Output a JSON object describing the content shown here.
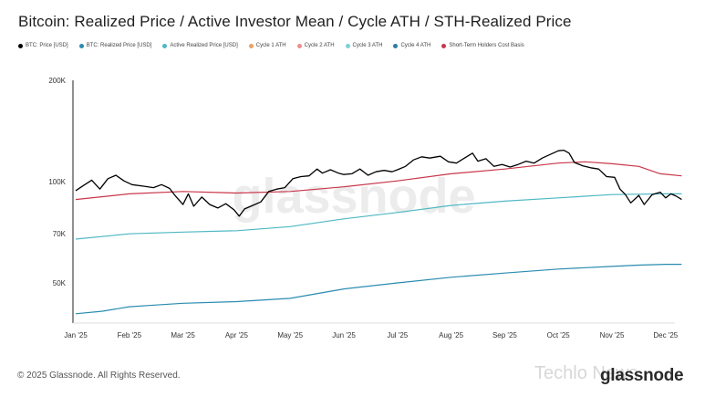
{
  "chart_data": {
    "type": "line",
    "title": "Bitcoin: Realized Price / Active Investor Mean / Cycle ATH / STH-Realized Price",
    "legend": [
      {
        "name": "BTC: Price [USD]",
        "color": "#000000"
      },
      {
        "name": "BTC: Realized Price [USD]",
        "color": "#2a8bb0"
      },
      {
        "name": "Active Realized Price [USD]",
        "color": "#4fb8c4"
      },
      {
        "name": "Cycle 1 ATH",
        "color": "#f0a060"
      },
      {
        "name": "Cycle 2 ATH",
        "color": "#ef8c8c"
      },
      {
        "name": "Cycle 3 ATH",
        "color": "#7fd0d8"
      },
      {
        "name": "Cycle 4 ATH",
        "color": "#2a7fa0"
      },
      {
        "name": "Short-Term Holders Cost Basis",
        "color": "#c9364a"
      }
    ],
    "y_scale": "log",
    "ylim": [
      38000,
      200000
    ],
    "y_ticks": [
      {
        "value": 200000,
        "label": "200K"
      },
      {
        "value": 100000,
        "label": "100K"
      },
      {
        "value": 70000,
        "label": "70K"
      },
      {
        "value": 50000,
        "label": "50K"
      }
    ],
    "x_ticks": [
      "Jan '25",
      "Feb '25",
      "Mar '25",
      "Apr '25",
      "May '25",
      "Jun '25",
      "Jul '25",
      "Aug '25",
      "Sep '25",
      "Oct '25",
      "Nov '25",
      "Dec '25"
    ],
    "x_range_months": [
      0,
      11.3
    ],
    "series": [
      {
        "name": "BTC: Price [USD]",
        "color": "#000000",
        "points": [
          [
            0.0,
            94000
          ],
          [
            0.15,
            97500
          ],
          [
            0.3,
            101000
          ],
          [
            0.45,
            95000
          ],
          [
            0.6,
            102000
          ],
          [
            0.75,
            104500
          ],
          [
            0.9,
            100500
          ],
          [
            1.05,
            98000
          ],
          [
            1.25,
            97000
          ],
          [
            1.45,
            96000
          ],
          [
            1.6,
            98000
          ],
          [
            1.75,
            95500
          ],
          [
            1.85,
            91000
          ],
          [
            2.0,
            85500
          ],
          [
            2.1,
            92000
          ],
          [
            2.2,
            84500
          ],
          [
            2.35,
            90000
          ],
          [
            2.5,
            85500
          ],
          [
            2.65,
            83500
          ],
          [
            2.8,
            86000
          ],
          [
            2.95,
            82500
          ],
          [
            3.05,
            79000
          ],
          [
            3.15,
            83000
          ],
          [
            3.3,
            85000
          ],
          [
            3.45,
            87000
          ],
          [
            3.6,
            93500
          ],
          [
            3.75,
            95000
          ],
          [
            3.9,
            96000
          ],
          [
            4.05,
            102000
          ],
          [
            4.2,
            103500
          ],
          [
            4.35,
            104000
          ],
          [
            4.5,
            109000
          ],
          [
            4.6,
            106000
          ],
          [
            4.75,
            108500
          ],
          [
            4.9,
            106000
          ],
          [
            5.0,
            105000
          ],
          [
            5.15,
            105500
          ],
          [
            5.3,
            109000
          ],
          [
            5.45,
            104500
          ],
          [
            5.6,
            107000
          ],
          [
            5.75,
            108000
          ],
          [
            5.9,
            107000
          ],
          [
            6.0,
            108500
          ],
          [
            6.15,
            111000
          ],
          [
            6.3,
            116000
          ],
          [
            6.45,
            118500
          ],
          [
            6.6,
            117500
          ],
          [
            6.8,
            119000
          ],
          [
            6.95,
            114500
          ],
          [
            7.1,
            113500
          ],
          [
            7.25,
            117500
          ],
          [
            7.4,
            121500
          ],
          [
            7.5,
            115000
          ],
          [
            7.65,
            117000
          ],
          [
            7.8,
            111000
          ],
          [
            7.95,
            112500
          ],
          [
            8.1,
            110500
          ],
          [
            8.25,
            112500
          ],
          [
            8.4,
            115000
          ],
          [
            8.55,
            113500
          ],
          [
            8.7,
            117500
          ],
          [
            8.85,
            120500
          ],
          [
            9.0,
            123500
          ],
          [
            9.1,
            124000
          ],
          [
            9.2,
            121500
          ],
          [
            9.3,
            114000
          ],
          [
            9.45,
            111500
          ],
          [
            9.6,
            110000
          ],
          [
            9.75,
            109000
          ],
          [
            9.9,
            103500
          ],
          [
            10.05,
            103000
          ],
          [
            10.15,
            95000
          ],
          [
            10.25,
            91500
          ],
          [
            10.35,
            86500
          ],
          [
            10.5,
            91000
          ],
          [
            10.6,
            85500
          ],
          [
            10.75,
            91500
          ],
          [
            10.9,
            93000
          ],
          [
            11.0,
            89500
          ],
          [
            11.1,
            92000
          ],
          [
            11.2,
            90500
          ],
          [
            11.3,
            88500
          ]
        ]
      },
      {
        "name": "Short-Term Holders Cost Basis",
        "color": "#c9364a",
        "points": [
          [
            0.0,
            88500
          ],
          [
            1.0,
            92000
          ],
          [
            2.0,
            93500
          ],
          [
            3.0,
            92500
          ],
          [
            4.0,
            93500
          ],
          [
            5.0,
            96500
          ],
          [
            6.0,
            100500
          ],
          [
            7.0,
            105500
          ],
          [
            8.0,
            109000
          ],
          [
            9.0,
            113500
          ],
          [
            9.5,
            114500
          ],
          [
            10.0,
            113000
          ],
          [
            10.5,
            111000
          ],
          [
            10.9,
            105500
          ],
          [
            11.3,
            104000
          ]
        ]
      },
      {
        "name": "Active Realized Price [USD]",
        "color": "#4fb8c4",
        "points": [
          [
            0.0,
            67500
          ],
          [
            1.0,
            70000
          ],
          [
            2.0,
            70800
          ],
          [
            3.0,
            71500
          ],
          [
            4.0,
            73500
          ],
          [
            5.0,
            77500
          ],
          [
            6.0,
            81000
          ],
          [
            7.0,
            85000
          ],
          [
            8.0,
            87500
          ],
          [
            9.0,
            89500
          ],
          [
            10.0,
            91500
          ],
          [
            11.0,
            92000
          ],
          [
            11.3,
            92000
          ]
        ]
      },
      {
        "name": "BTC: Realized Price [USD]",
        "color": "#2a8bb0",
        "points": [
          [
            0.0,
            40500
          ],
          [
            0.5,
            41200
          ],
          [
            1.0,
            42500
          ],
          [
            1.5,
            43000
          ],
          [
            2.0,
            43500
          ],
          [
            3.0,
            44000
          ],
          [
            4.0,
            45000
          ],
          [
            5.0,
            48000
          ],
          [
            6.0,
            50000
          ],
          [
            7.0,
            52000
          ],
          [
            8.0,
            53500
          ],
          [
            9.0,
            55000
          ],
          [
            10.0,
            56000
          ],
          [
            10.5,
            56500
          ],
          [
            11.0,
            56800
          ],
          [
            11.3,
            56800
          ]
        ]
      }
    ],
    "watermark": "glassnode"
  },
  "footer": {
    "copyright": "© 2025 Glassnode. All Rights Reserved.",
    "brand": "glassnode",
    "overlay_watermark": "Techlo News"
  }
}
